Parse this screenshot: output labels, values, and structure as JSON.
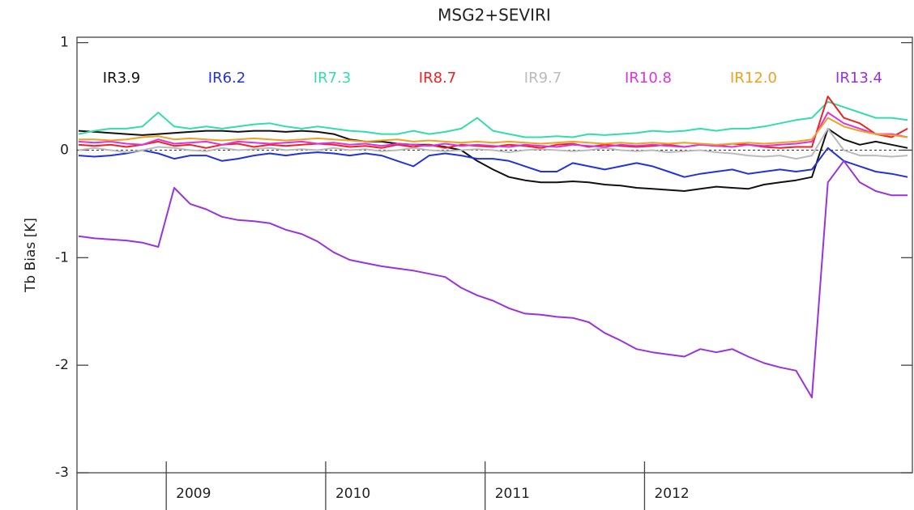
{
  "chart_data": {
    "type": "line",
    "title": "MSG2+SEVIRI",
    "y_label": "Tb Bias [K]",
    "x": [
      2008.45,
      2008.55,
      2008.65,
      2008.75,
      2008.85,
      2008.95,
      2009.05,
      2009.15,
      2009.25,
      2009.35,
      2009.45,
      2009.55,
      2009.65,
      2009.75,
      2009.85,
      2009.95,
      2010.05,
      2010.15,
      2010.25,
      2010.35,
      2010.45,
      2010.55,
      2010.65,
      2010.75,
      2010.85,
      2010.95,
      2011.05,
      2011.15,
      2011.25,
      2011.35,
      2011.45,
      2011.55,
      2011.65,
      2011.75,
      2011.85,
      2011.95,
      2012.05,
      2012.15,
      2012.25,
      2012.35,
      2012.45,
      2012.55,
      2012.65,
      2012.75,
      2012.85,
      2012.95,
      2013.05,
      2013.15,
      2013.25,
      2013.35,
      2013.45,
      2013.55,
      2013.65
    ],
    "series": [
      {
        "name": "IR3.9",
        "color": "#111111",
        "values": [
          0.18,
          0.17,
          0.16,
          0.15,
          0.14,
          0.15,
          0.16,
          0.17,
          0.18,
          0.18,
          0.17,
          0.18,
          0.18,
          0.17,
          0.18,
          0.17,
          0.15,
          0.1,
          0.08,
          0.08,
          0.06,
          0.05,
          0.05,
          0.03,
          0.0,
          -0.1,
          -0.18,
          -0.25,
          -0.28,
          -0.3,
          -0.3,
          -0.29,
          -0.3,
          -0.32,
          -0.33,
          -0.35,
          -0.36,
          -0.37,
          -0.38,
          -0.36,
          -0.34,
          -0.35,
          -0.36,
          -0.32,
          -0.3,
          -0.28,
          -0.25,
          0.2,
          0.1,
          0.05,
          0.08,
          0.05,
          0.02
        ]
      },
      {
        "name": "IR6.2",
        "color": "#2233dd",
        "values": [
          -0.05,
          -0.06,
          -0.05,
          -0.03,
          0.0,
          -0.03,
          -0.08,
          -0.05,
          -0.05,
          -0.1,
          -0.08,
          -0.05,
          -0.03,
          -0.05,
          -0.03,
          -0.02,
          -0.03,
          -0.05,
          -0.03,
          -0.05,
          -0.1,
          -0.15,
          -0.05,
          -0.03,
          -0.05,
          -0.08,
          -0.08,
          -0.1,
          -0.15,
          -0.2,
          -0.2,
          -0.12,
          -0.15,
          -0.18,
          -0.15,
          -0.12,
          -0.15,
          -0.2,
          -0.25,
          -0.22,
          -0.2,
          -0.18,
          -0.22,
          -0.2,
          -0.18,
          -0.2,
          -0.18,
          0.02,
          -0.1,
          -0.15,
          -0.2,
          -0.22,
          -0.25
        ]
      },
      {
        "name": "IR7.3",
        "color": "#33ddaa",
        "values": [
          0.15,
          0.18,
          0.2,
          0.2,
          0.22,
          0.35,
          0.22,
          0.2,
          0.22,
          0.2,
          0.22,
          0.24,
          0.25,
          0.22,
          0.2,
          0.22,
          0.2,
          0.18,
          0.17,
          0.15,
          0.15,
          0.18,
          0.15,
          0.17,
          0.2,
          0.3,
          0.18,
          0.15,
          0.12,
          0.12,
          0.13,
          0.12,
          0.15,
          0.14,
          0.15,
          0.16,
          0.18,
          0.17,
          0.18,
          0.2,
          0.18,
          0.2,
          0.2,
          0.22,
          0.25,
          0.28,
          0.3,
          0.45,
          0.4,
          0.35,
          0.3,
          0.3,
          0.28
        ]
      },
      {
        "name": "IR8.7",
        "color": "#ee2222",
        "values": [
          0.05,
          0.04,
          0.05,
          0.03,
          0.05,
          0.08,
          0.04,
          0.05,
          0.02,
          0.05,
          0.06,
          0.03,
          0.05,
          0.04,
          0.05,
          0.06,
          0.05,
          0.03,
          0.04,
          0.02,
          0.05,
          0.03,
          0.05,
          0.02,
          0.05,
          0.04,
          0.03,
          0.05,
          0.04,
          0.02,
          0.05,
          0.06,
          0.03,
          0.05,
          0.04,
          0.03,
          0.04,
          0.05,
          0.03,
          0.05,
          0.04,
          0.06,
          0.05,
          0.03,
          0.02,
          0.03,
          0.03,
          0.5,
          0.3,
          0.25,
          0.15,
          0.12,
          0.2
        ]
      },
      {
        "name": "IR9.7",
        "color": "#bbbbbb",
        "values": [
          0.0,
          0.02,
          0.0,
          -0.02,
          0.0,
          0.03,
          0.02,
          0.0,
          -0.01,
          0.02,
          0.0,
          0.01,
          0.02,
          0.0,
          0.01,
          0.0,
          0.02,
          0.0,
          0.01,
          -0.01,
          0.0,
          0.02,
          0.0,
          -0.01,
          0.0,
          0.01,
          0.0,
          -0.02,
          0.0,
          0.01,
          0.0,
          -0.01,
          0.0,
          0.02,
          0.0,
          -0.01,
          0.0,
          -0.02,
          -0.01,
          0.0,
          -0.02,
          -0.03,
          -0.05,
          -0.06,
          -0.05,
          -0.08,
          -0.05,
          0.2,
          0.0,
          -0.05,
          -0.05,
          -0.06,
          -0.05
        ]
      },
      {
        "name": "IR10.8",
        "color": "#dd33dd",
        "values": [
          0.08,
          0.07,
          0.08,
          0.06,
          0.05,
          0.1,
          0.06,
          0.07,
          0.08,
          0.05,
          0.08,
          0.07,
          0.06,
          0.07,
          0.08,
          0.06,
          0.07,
          0.05,
          0.06,
          0.04,
          0.06,
          0.05,
          0.04,
          0.06,
          0.04,
          0.05,
          0.04,
          0.03,
          0.05,
          0.04,
          0.03,
          0.05,
          0.04,
          0.03,
          0.05,
          0.04,
          0.05,
          0.04,
          0.03,
          0.05,
          0.04,
          0.03,
          0.05,
          0.04,
          0.05,
          0.06,
          0.08,
          0.35,
          0.25,
          0.2,
          0.15,
          0.15,
          0.12
        ]
      },
      {
        "name": "IR12.0",
        "color": "#f0a020",
        "values": [
          0.1,
          0.1,
          0.09,
          0.1,
          0.12,
          0.13,
          0.1,
          0.11,
          0.1,
          0.09,
          0.1,
          0.11,
          0.1,
          0.09,
          0.1,
          0.11,
          0.1,
          0.09,
          0.08,
          0.09,
          0.1,
          0.08,
          0.09,
          0.08,
          0.07,
          0.08,
          0.07,
          0.08,
          0.07,
          0.06,
          0.07,
          0.08,
          0.07,
          0.06,
          0.07,
          0.06,
          0.07,
          0.06,
          0.07,
          0.06,
          0.05,
          0.06,
          0.07,
          0.06,
          0.07,
          0.08,
          0.1,
          0.3,
          0.22,
          0.18,
          0.15,
          0.14,
          0.12
        ]
      },
      {
        "name": "IR13.4",
        "color": "#9933dd",
        "values": [
          -0.8,
          -0.82,
          -0.83,
          -0.84,
          -0.86,
          -0.9,
          -0.35,
          -0.5,
          -0.55,
          -0.62,
          -0.65,
          -0.66,
          -0.68,
          -0.74,
          -0.78,
          -0.85,
          -0.95,
          -1.02,
          -1.05,
          -1.08,
          -1.1,
          -1.12,
          -1.15,
          -1.18,
          -1.28,
          -1.35,
          -1.4,
          -1.47,
          -1.52,
          -1.53,
          -1.55,
          -1.56,
          -1.6,
          -1.7,
          -1.77,
          -1.85,
          -1.88,
          -1.9,
          -1.92,
          -1.85,
          -1.88,
          -1.85,
          -1.92,
          -1.98,
          -2.02,
          -2.05,
          -2.3,
          -0.3,
          -0.1,
          -0.3,
          -0.38,
          -0.42,
          -0.42
        ]
      }
    ],
    "xlim": [
      2008.44,
      2013.68
    ],
    "xticks": [
      2009,
      2010,
      2011,
      2012
    ],
    "ylim": [
      -3,
      1.05
    ],
    "yticks": [
      1,
      0,
      -1,
      -2,
      -3
    ],
    "reference_line": 0
  }
}
